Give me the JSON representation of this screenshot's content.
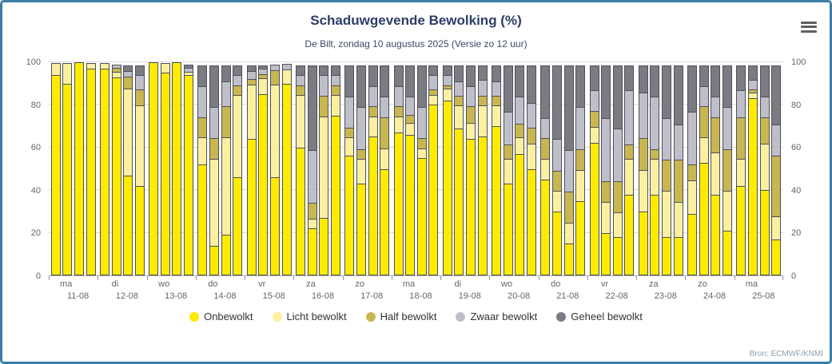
{
  "header": {
    "menu_icon": "hamburger-menu"
  },
  "footer": {
    "source": "Bron: ECMWF/KNMI"
  },
  "chart_data": {
    "type": "bar",
    "stacked": true,
    "title": "Schaduwgevende Bewolking (%)",
    "subtitle": "De Bilt, zondag 10 augustus 2025 (Versie zo 12 uur)",
    "ylim": [
      0,
      100
    ],
    "yticks": [
      0,
      20,
      40,
      60,
      80,
      100
    ],
    "grid": true,
    "legend_position": "bottom",
    "bars_per_day": 4,
    "series_names": [
      "Onbewolkt",
      "Licht bewolkt",
      "Half bewolkt",
      "Zwaar bewolkt",
      "Geheel bewolkt"
    ],
    "series_colors": [
      "#ffeb00",
      "#fbf0a0",
      "#c8b750",
      "#bfbfca",
      "#7b7b84"
    ],
    "segment_border_color": "#4f4f57",
    "days": [
      {
        "weekday": "ma",
        "date": "11-08",
        "bars": [
          [
            94,
            6,
            0,
            0,
            0
          ],
          [
            90,
            10,
            0,
            0,
            0
          ],
          [
            100,
            0,
            0,
            0,
            0
          ],
          [
            97,
            3,
            0,
            0,
            0
          ]
        ]
      },
      {
        "weekday": "di",
        "date": "12-08",
        "bars": [
          [
            97,
            3,
            0,
            0,
            0
          ],
          [
            93,
            3,
            2,
            2,
            0
          ],
          [
            47,
            41,
            6,
            3,
            3
          ],
          [
            42,
            38,
            8,
            7,
            5
          ]
        ]
      },
      {
        "weekday": "wo",
        "date": "13-08",
        "bars": [
          [
            100,
            0,
            0,
            0,
            0
          ],
          [
            95,
            5,
            0,
            0,
            0
          ],
          [
            100,
            0,
            0,
            0,
            0
          ],
          [
            94,
            2,
            0,
            2,
            2
          ]
        ]
      },
      {
        "weekday": "do",
        "date": "14-08",
        "bars": [
          [
            52,
            13,
            10,
            15,
            10
          ],
          [
            14,
            41,
            10,
            15,
            20
          ],
          [
            19,
            46,
            15,
            12,
            8
          ],
          [
            46,
            39,
            5,
            5,
            5
          ]
        ]
      },
      {
        "weekday": "vr",
        "date": "15-08",
        "bars": [
          [
            64,
            26,
            3,
            4,
            3
          ],
          [
            85,
            8,
            2,
            3,
            2
          ],
          [
            46,
            44,
            7,
            3,
            0
          ],
          [
            90,
            7,
            0,
            3,
            0
          ]
        ]
      },
      {
        "weekday": "za",
        "date": "16-08",
        "bars": [
          [
            60,
            25,
            5,
            5,
            5
          ],
          [
            22,
            5,
            8,
            25,
            40
          ],
          [
            27,
            48,
            10,
            10,
            5
          ],
          [
            75,
            10,
            5,
            5,
            5
          ]
        ]
      },
      {
        "weekday": "zo",
        "date": "17-08",
        "bars": [
          [
            56,
            9,
            5,
            15,
            15
          ],
          [
            43,
            12,
            5,
            20,
            20
          ],
          [
            65,
            10,
            5,
            10,
            10
          ],
          [
            50,
            10,
            15,
            10,
            15
          ]
        ]
      },
      {
        "weekday": "ma",
        "date": "18-08",
        "bars": [
          [
            67,
            8,
            5,
            10,
            10
          ],
          [
            66,
            6,
            4,
            9,
            15
          ],
          [
            55,
            5,
            5,
            15,
            20
          ],
          [
            80,
            5,
            3,
            7,
            5
          ]
        ]
      },
      {
        "weekday": "di",
        "date": "19-08",
        "bars": [
          [
            82,
            6,
            2,
            5,
            5
          ],
          [
            69,
            11,
            5,
            7,
            8
          ],
          [
            64,
            8,
            8,
            10,
            10
          ],
          [
            65,
            15,
            5,
            8,
            7
          ]
        ]
      },
      {
        "weekday": "wo",
        "date": "20-08",
        "bars": [
          [
            70,
            10,
            5,
            7,
            8
          ],
          [
            43,
            12,
            7,
            16,
            22
          ],
          [
            57,
            8,
            7,
            13,
            15
          ],
          [
            50,
            12,
            8,
            12,
            18
          ]
        ]
      },
      {
        "weekday": "do",
        "date": "21-08",
        "bars": [
          [
            45,
            10,
            10,
            10,
            25
          ],
          [
            30,
            10,
            10,
            15,
            35
          ],
          [
            15,
            10,
            15,
            20,
            40
          ],
          [
            35,
            15,
            10,
            20,
            20
          ]
        ]
      },
      {
        "weekday": "vr",
        "date": "22-08",
        "bars": [
          [
            62,
            8,
            8,
            10,
            12
          ],
          [
            20,
            15,
            10,
            30,
            25
          ],
          [
            18,
            12,
            15,
            25,
            30
          ],
          [
            38,
            17,
            7,
            26,
            12
          ]
        ]
      },
      {
        "weekday": "za",
        "date": "23-08",
        "bars": [
          [
            30,
            20,
            15,
            22,
            13
          ],
          [
            38,
            17,
            5,
            25,
            15
          ],
          [
            18,
            22,
            15,
            20,
            25
          ],
          [
            18,
            17,
            20,
            17,
            28
          ]
        ]
      },
      {
        "weekday": "zo",
        "date": "24-08",
        "bars": [
          [
            29,
            16,
            8,
            25,
            22
          ],
          [
            53,
            12,
            15,
            10,
            10
          ],
          [
            38,
            20,
            17,
            10,
            15
          ],
          [
            21,
            19,
            20,
            20,
            20
          ]
        ]
      },
      {
        "weekday": "ma",
        "date": "25-08",
        "bars": [
          [
            42,
            13,
            20,
            13,
            12
          ],
          [
            83,
            3,
            2,
            5,
            7
          ],
          [
            40,
            22,
            13,
            10,
            15
          ],
          [
            17,
            11,
            29,
            15,
            28
          ]
        ]
      }
    ]
  }
}
